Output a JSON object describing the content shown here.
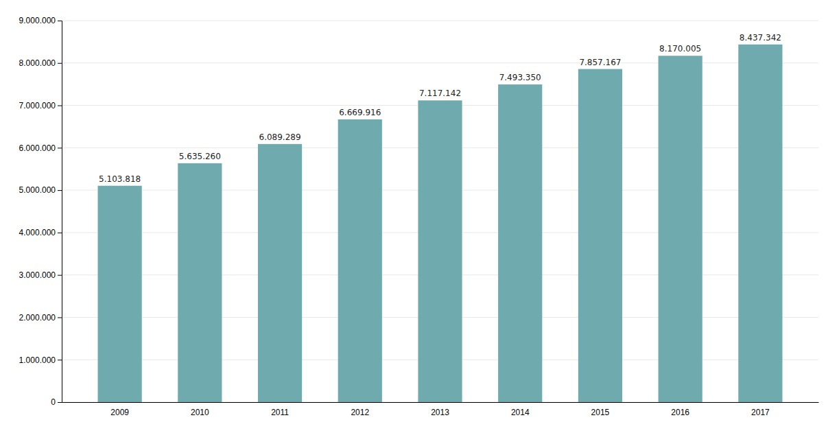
{
  "chart_data": {
    "type": "bar",
    "categories": [
      "2009",
      "2010",
      "2011",
      "2012",
      "2013",
      "2014",
      "2015",
      "2016",
      "2017"
    ],
    "values": [
      5103818,
      5635260,
      6089289,
      6669916,
      7117142,
      7493350,
      7857167,
      8170005,
      8437342
    ],
    "value_labels": [
      "5.103.818",
      "5.635.260",
      "6.089.289",
      "6.669.916",
      "7.117.142",
      "7.493.350",
      "7.857.167",
      "8.170.005",
      "8.437.342"
    ],
    "data_labels": true,
    "color": "#6faaaf",
    "ylim": [
      0,
      9000000
    ],
    "yticks": [
      0,
      {
        "value": 1000000,
        "label": "1.000.000"
      },
      {
        "value": 2000000,
        "label": "2.000.000"
      },
      {
        "value": 3000000,
        "label": "3.000.000"
      },
      {
        "value": 4000000,
        "label": "4.000.000"
      },
      {
        "value": 5000000,
        "label": "5.000.000"
      },
      {
        "value": 6000000,
        "label": "6.000.000"
      },
      {
        "value": 7000000,
        "label": "7.000.000"
      },
      {
        "value": 8000000,
        "label": "8.000.000"
      },
      {
        "value": 9000000,
        "label": "9.000.000"
      }
    ],
    "grid": true
  }
}
